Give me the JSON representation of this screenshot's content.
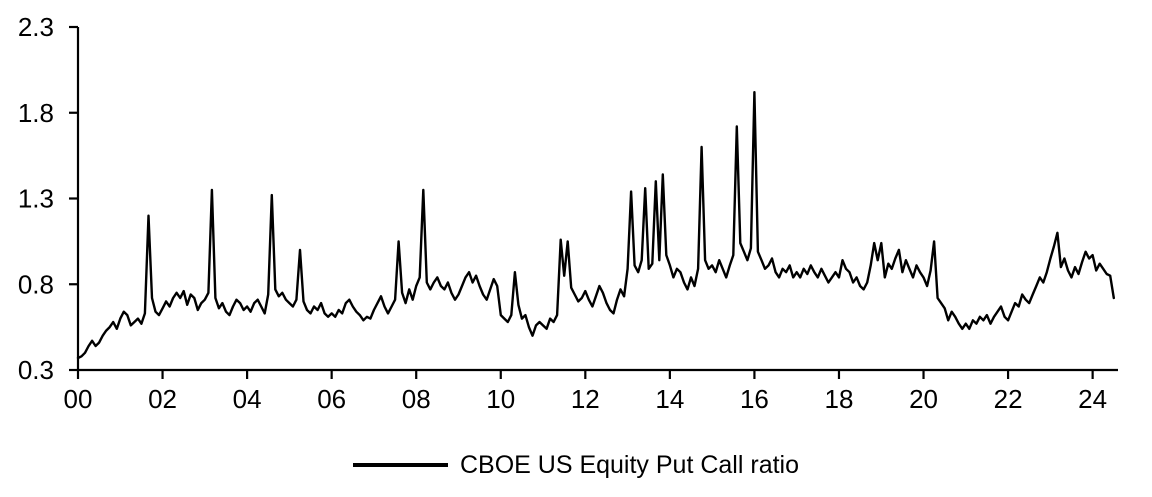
{
  "page": {
    "background": "#ffffff"
  },
  "chart_data": {
    "type": "line",
    "title": "",
    "xlabel": "",
    "ylabel": "",
    "grid": false,
    "legend": {
      "label": "CBOE US Equity Put Call ratio",
      "position": "bottom-center"
    },
    "xlim": [
      2000,
      2024.6
    ],
    "ylim": [
      0.3,
      2.3
    ],
    "yticks": [
      0.3,
      0.8,
      1.3,
      1.8,
      2.3
    ],
    "ytick_labels": [
      "0.3",
      "0.8",
      "1.3",
      "1.8",
      "2.3"
    ],
    "xticks": [
      2000,
      2002,
      2004,
      2006,
      2008,
      2010,
      2012,
      2014,
      2016,
      2018,
      2020,
      2022,
      2024
    ],
    "xtick_labels": [
      "00",
      "02",
      "04",
      "06",
      "08",
      "10",
      "12",
      "14",
      "16",
      "18",
      "20",
      "22",
      "24"
    ],
    "series": [
      {
        "name": "CBOE US Equity Put Call ratio",
        "color": "#000000",
        "x_start": 2000.0,
        "x_interval_years": 0.0833333,
        "values": [
          0.37,
          0.38,
          0.4,
          0.44,
          0.47,
          0.44,
          0.46,
          0.5,
          0.53,
          0.55,
          0.58,
          0.54,
          0.6,
          0.64,
          0.62,
          0.56,
          0.58,
          0.6,
          0.57,
          0.63,
          1.2,
          0.72,
          0.64,
          0.62,
          0.66,
          0.7,
          0.67,
          0.72,
          0.75,
          0.72,
          0.76,
          0.68,
          0.74,
          0.72,
          0.65,
          0.69,
          0.71,
          0.75,
          1.35,
          0.72,
          0.66,
          0.69,
          0.64,
          0.62,
          0.67,
          0.71,
          0.69,
          0.65,
          0.67,
          0.64,
          0.69,
          0.71,
          0.67,
          0.63,
          0.74,
          1.32,
          0.77,
          0.73,
          0.75,
          0.71,
          0.69,
          0.67,
          0.71,
          1.0,
          0.7,
          0.65,
          0.63,
          0.67,
          0.65,
          0.69,
          0.63,
          0.61,
          0.63,
          0.61,
          0.65,
          0.63,
          0.69,
          0.71,
          0.67,
          0.64,
          0.62,
          0.59,
          0.61,
          0.6,
          0.65,
          0.69,
          0.73,
          0.67,
          0.63,
          0.67,
          0.71,
          1.05,
          0.75,
          0.69,
          0.77,
          0.71,
          0.79,
          0.84,
          1.35,
          0.81,
          0.77,
          0.81,
          0.84,
          0.79,
          0.77,
          0.81,
          0.75,
          0.71,
          0.74,
          0.79,
          0.84,
          0.87,
          0.81,
          0.85,
          0.79,
          0.74,
          0.71,
          0.77,
          0.83,
          0.79,
          0.62,
          0.6,
          0.58,
          0.62,
          0.87,
          0.68,
          0.6,
          0.62,
          0.55,
          0.5,
          0.56,
          0.58,
          0.56,
          0.54,
          0.6,
          0.58,
          0.62,
          1.06,
          0.85,
          1.05,
          0.78,
          0.74,
          0.7,
          0.72,
          0.76,
          0.71,
          0.67,
          0.73,
          0.79,
          0.75,
          0.69,
          0.65,
          0.63,
          0.71,
          0.77,
          0.73,
          0.89,
          1.34,
          0.91,
          0.87,
          0.94,
          1.36,
          0.89,
          0.92,
          1.4,
          0.94,
          1.44,
          0.97,
          0.91,
          0.84,
          0.89,
          0.87,
          0.81,
          0.77,
          0.84,
          0.79,
          0.89,
          1.6,
          0.94,
          0.89,
          0.91,
          0.87,
          0.94,
          0.89,
          0.84,
          0.91,
          0.97,
          1.72,
          1.04,
          0.99,
          0.94,
          1.01,
          1.92,
          0.99,
          0.94,
          0.89,
          0.91,
          0.95,
          0.87,
          0.84,
          0.89,
          0.87,
          0.91,
          0.84,
          0.87,
          0.84,
          0.89,
          0.86,
          0.91,
          0.87,
          0.84,
          0.89,
          0.85,
          0.81,
          0.84,
          0.87,
          0.84,
          0.94,
          0.89,
          0.87,
          0.81,
          0.84,
          0.79,
          0.77,
          0.81,
          0.91,
          1.04,
          0.94,
          1.04,
          0.84,
          0.92,
          0.89,
          0.95,
          1.0,
          0.87,
          0.94,
          0.89,
          0.84,
          0.91,
          0.87,
          0.84,
          0.79,
          0.88,
          1.05,
          0.72,
          0.69,
          0.66,
          0.59,
          0.64,
          0.61,
          0.57,
          0.54,
          0.57,
          0.54,
          0.59,
          0.57,
          0.61,
          0.59,
          0.62,
          0.57,
          0.61,
          0.64,
          0.67,
          0.61,
          0.59,
          0.64,
          0.69,
          0.67,
          0.74,
          0.71,
          0.69,
          0.74,
          0.79,
          0.84,
          0.81,
          0.87,
          0.95,
          1.02,
          1.1,
          0.9,
          0.95,
          0.88,
          0.84,
          0.9,
          0.86,
          0.93,
          0.99,
          0.95,
          0.97,
          0.88,
          0.92,
          0.89,
          0.86,
          0.85,
          0.72
        ]
      }
    ]
  }
}
